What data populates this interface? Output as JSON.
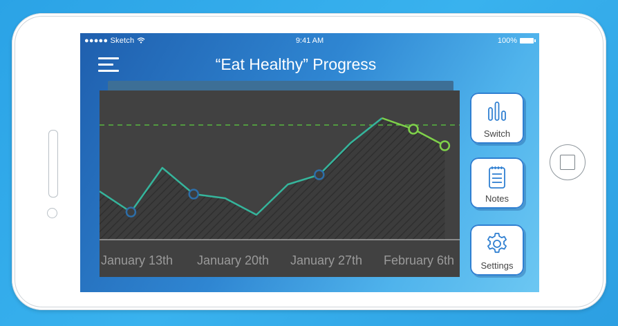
{
  "status_bar": {
    "carrier": "●●●●● Sketch",
    "time": "9:41 AM",
    "battery": "100%"
  },
  "header": {
    "title": "“Eat Healthy” Progress"
  },
  "chart_data": {
    "type": "line",
    "x_tick_labels": [
      "January 13th",
      "January 20th",
      "January 27th",
      "February 6th"
    ],
    "target_line": true,
    "series": [
      {
        "color": "#35b59c",
        "points": [
          {
            "x": 0,
            "y": 0.35
          },
          {
            "x": 1,
            "y": 0.2
          },
          {
            "x": 2,
            "y": 0.52
          },
          {
            "x": 3,
            "y": 0.33,
            "marker": true
          },
          {
            "x": 4,
            "y": 0.3
          },
          {
            "x": 5,
            "y": 0.18
          },
          {
            "x": 6,
            "y": 0.4
          },
          {
            "x": 7,
            "y": 0.47,
            "marker": true
          },
          {
            "x": 8,
            "y": 0.7
          },
          {
            "x": 9,
            "y": 0.88
          }
        ]
      },
      {
        "color": "#7fd24a",
        "points": [
          {
            "x": 9,
            "y": 0.88
          },
          {
            "x": 10,
            "y": 0.8,
            "marker": true
          },
          {
            "x": 11,
            "y": 0.68,
            "marker": true
          }
        ]
      }
    ],
    "first_marker_x": 1,
    "target_y": 0.83,
    "colors": {
      "teal": "#35b59c",
      "green": "#7fd24a",
      "marker_blue": "#2d6ea8",
      "target": "#5ccf3f"
    }
  },
  "actions": [
    {
      "id": "switch",
      "label": "Switch",
      "icon": "bar-chart-icon"
    },
    {
      "id": "notes",
      "label": "Notes",
      "icon": "notepad-icon"
    },
    {
      "id": "settings",
      "label": "Settings",
      "icon": "gear-icon"
    }
  ],
  "colors": {
    "accent": "#2f7fd1",
    "icon": "#2f7fd1"
  }
}
